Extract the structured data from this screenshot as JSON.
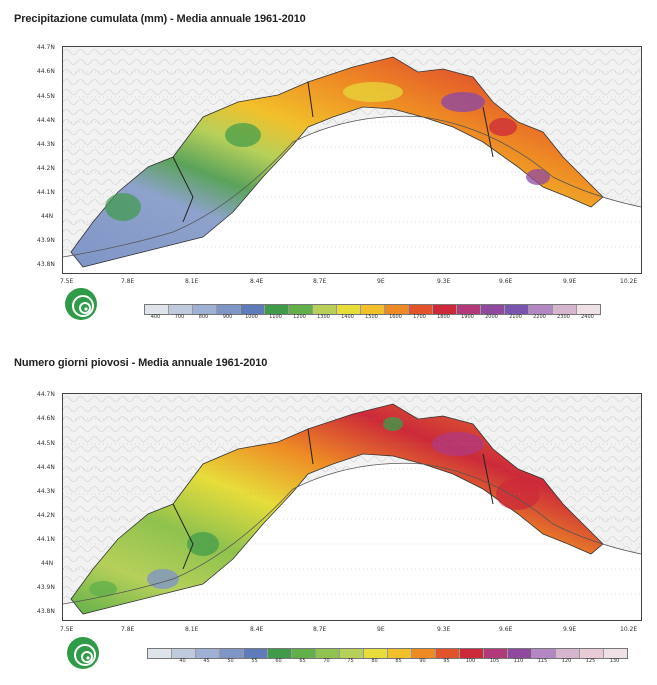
{
  "maps": [
    {
      "title": "Precipitazione cumulata (mm) - Media annuale 1961-2010",
      "lat_labels": [
        "44.7N",
        "44.6N",
        "44.5N",
        "44.4N",
        "44.3N",
        "44.2N",
        "44.1N",
        "44N",
        "43.9N",
        "43.8N"
      ],
      "lon_labels": [
        "7.5E",
        "7.8E",
        "8.1E",
        "8.4E",
        "8.7E",
        "9E",
        "9.3E",
        "9.6E",
        "9.9E",
        "10.2E"
      ],
      "legend": {
        "labels": [
          "400",
          "700",
          "800",
          "900",
          "1000",
          "1100",
          "1200",
          "1300",
          "1400",
          "1500",
          "1600",
          "1700",
          "1800",
          "1900",
          "2000",
          "2100",
          "2200",
          "2300",
          "2400"
        ],
        "colors": [
          "#dfe3ea",
          "#bfcadd",
          "#9eb0d3",
          "#7f95c6",
          "#5f7cba",
          "#3f9a4a",
          "#62b04a",
          "#b6d05a",
          "#e7dd3a",
          "#f2c02a",
          "#ee8a24",
          "#e2532b",
          "#cc2a3a",
          "#b33a7a",
          "#8f4aa0",
          "#7a55b0",
          "#b287c4",
          "#d6b6cf",
          "#efe0e6"
        ]
      }
    },
    {
      "title": "Numero giorni piovosi - Media annuale 1961-2010",
      "lat_labels": [
        "44.7N",
        "44.6N",
        "44.5N",
        "44.4N",
        "44.3N",
        "44.2N",
        "44.1N",
        "44N",
        "43.9N",
        "43.8N"
      ],
      "lon_labels": [
        "7.5E",
        "7.8E",
        "8.1E",
        "8.4E",
        "8.7E",
        "9E",
        "9.3E",
        "9.6E",
        "9.9E",
        "10.2E"
      ],
      "legend": {
        "labels": [
          "",
          "40",
          "45",
          "50",
          "55",
          "60",
          "65",
          "70",
          "75",
          "80",
          "85",
          "90",
          "95",
          "100",
          "105",
          "110",
          "115",
          "120",
          "125",
          "130"
        ],
        "colors": [
          "#dfe3ea",
          "#bfcadd",
          "#9eb0d3",
          "#7f95c6",
          "#5f7cba",
          "#3f9a4a",
          "#62b04a",
          "#8fc24e",
          "#b6d05a",
          "#e7dd3a",
          "#f2c02a",
          "#ee8a24",
          "#e2532b",
          "#cc2a3a",
          "#b33a7a",
          "#8f4aa0",
          "#b287c4",
          "#d6b6cf",
          "#e8cbd6",
          "#efe0e6"
        ]
      }
    }
  ]
}
